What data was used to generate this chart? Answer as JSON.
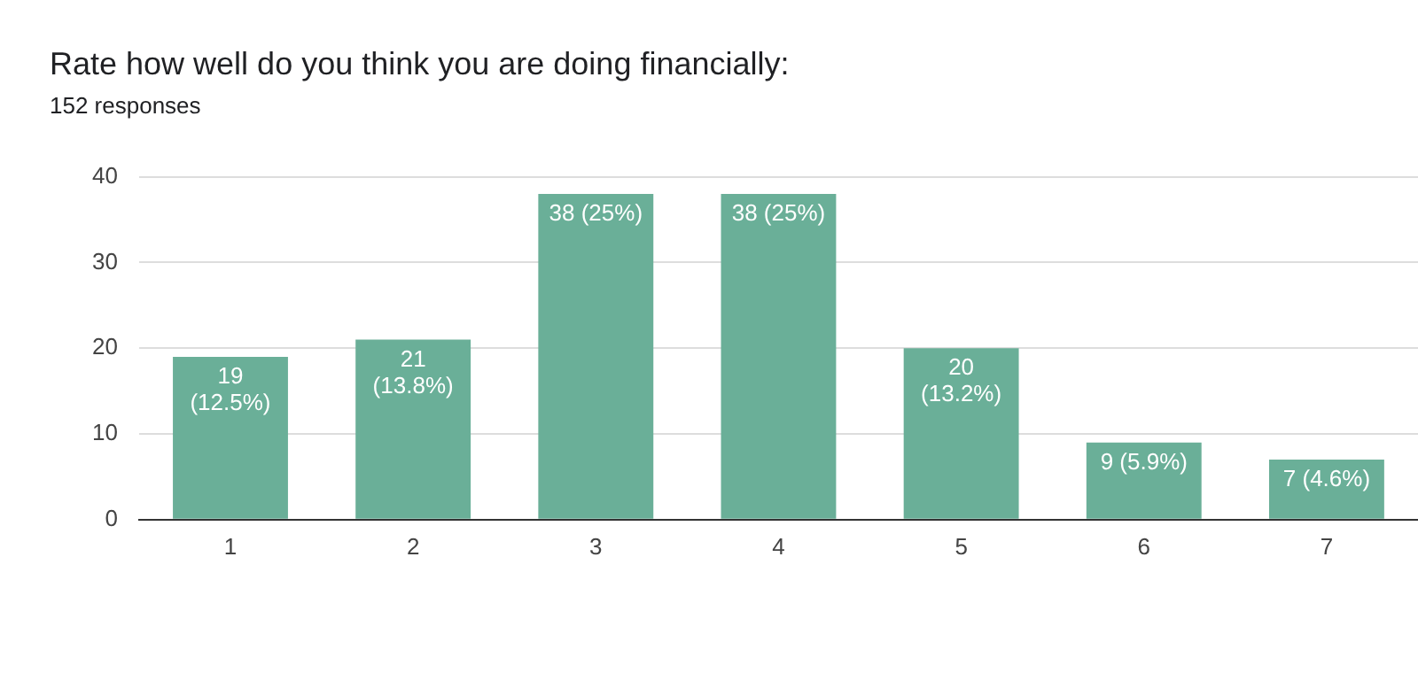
{
  "chart_data": {
    "type": "bar",
    "title": "Rate how well do you think you are doing financially:",
    "subtitle": "152 responses",
    "categories": [
      "1",
      "2",
      "3",
      "4",
      "5",
      "6",
      "7"
    ],
    "values": [
      19,
      21,
      38,
      38,
      20,
      9,
      7
    ],
    "value_labels": [
      "19 (12.5%)",
      "21 (13.8%)",
      "38 (25%)",
      "38 (25%)",
      "20 (13.2%)",
      "9 (5.9%)",
      "7 (4.6%)"
    ],
    "color": "#6aaf98",
    "ylim": [
      0,
      40
    ],
    "yticks": [
      0,
      10,
      20,
      30,
      40
    ],
    "grid": "y"
  }
}
